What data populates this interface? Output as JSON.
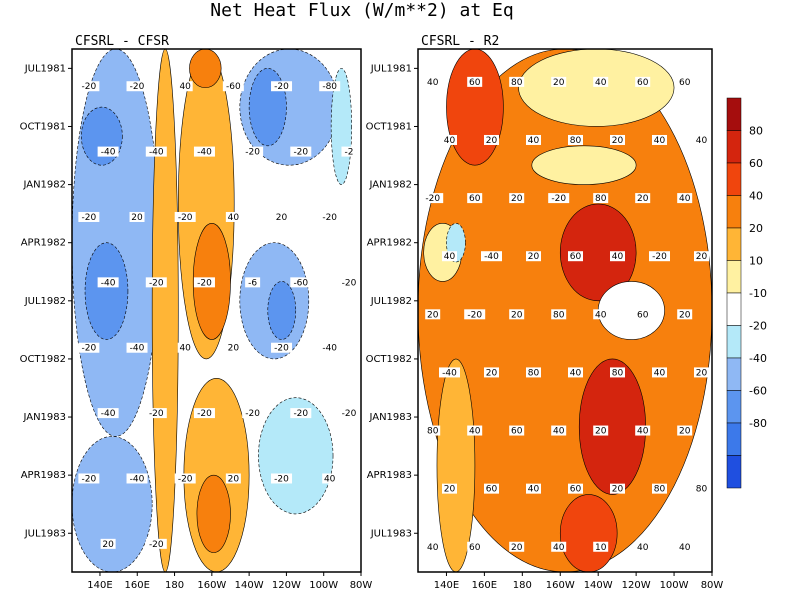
{
  "chart_data": {
    "type": "heatmap",
    "title": "Net Heat Flux (W/m**2) at Eq",
    "xlabel": "",
    "ylabel": "",
    "x_ticks": [
      "140E",
      "160E",
      "180",
      "160W",
      "140W",
      "120W",
      "100W",
      "80W"
    ],
    "y_ticks": [
      "JUL1981",
      "OCT1981",
      "JAN1982",
      "APR1982",
      "JUL1982",
      "OCT1982",
      "JAN1983",
      "APR1983",
      "JUL1983"
    ],
    "xlim": [
      "125E",
      "80W"
    ],
    "ylim": [
      "JUN1981",
      "SEP1983"
    ],
    "colorbar": {
      "levels": [
        -80,
        -60,
        -40,
        -20,
        -10,
        10,
        20,
        40,
        60,
        80
      ],
      "labels": [
        "-80",
        "-60",
        "-40",
        "-20",
        "-10",
        "10",
        "20",
        "40",
        "60",
        "80"
      ],
      "colors": [
        "#1f4fe0",
        "#3c79ea",
        "#5c95ef",
        "#8fb8f4",
        "#b4e9f9",
        "#ffffff",
        "#fff1a1",
        "#ffb536",
        "#f7800d",
        "#f0450d",
        "#d4250e",
        "#a50d0d"
      ]
    },
    "panels": [
      {
        "name": "CFSRL - CFSR",
        "regions": [
          {
            "x0": "125E",
            "x1": "172E",
            "y0": "JUN1981",
            "y1": "FEB1983",
            "value": -30
          },
          {
            "x0": "130E",
            "x1": "152E",
            "y0": "SEP1981",
            "y1": "DEC1981",
            "value": -50
          },
          {
            "x0": "132E",
            "x1": "155E",
            "y0": "APR1982",
            "y1": "SEP1982",
            "value": -45
          },
          {
            "x0": "125E",
            "x1": "168E",
            "y0": "FEB1983",
            "y1": "SEP1983",
            "value": -22
          },
          {
            "x0": "168E",
            "x1": "178W",
            "y0": "JUN1981",
            "y1": "SEP1983",
            "value": 28
          },
          {
            "x0": "178W",
            "x1": "148W",
            "y0": "JUN1981",
            "y1": "OCT1982",
            "value": 30
          },
          {
            "x0": "170W",
            "x1": "150W",
            "y0": "MAR1982",
            "y1": "SEP1982",
            "value": 55
          },
          {
            "x0": "172W",
            "x1": "155W",
            "y0": "JUN1981",
            "y1": "AUG1981",
            "value": 50
          },
          {
            "x0": "175W",
            "x1": "140W",
            "y0": "NOV1982",
            "y1": "SEP1983",
            "value": 30
          },
          {
            "x0": "168W",
            "x1": "150W",
            "y0": "APR1983",
            "y1": "AUG1983",
            "value": 50
          },
          {
            "x0": "145W",
            "x1": "92W",
            "y0": "JUN1981",
            "y1": "DEC1981",
            "value": -25
          },
          {
            "x0": "140W",
            "x1": "120W",
            "y0": "JUL1981",
            "y1": "NOV1981",
            "value": -45
          },
          {
            "x0": "145W",
            "x1": "108W",
            "y0": "APR1982",
            "y1": "OCT1982",
            "value": -28
          },
          {
            "x0": "130W",
            "x1": "115W",
            "y0": "JUN1982",
            "y1": "SEP1982",
            "value": -45
          },
          {
            "x0": "135W",
            "x1": "95W",
            "y0": "DEC1982",
            "y1": "JUN1983",
            "value": -18
          },
          {
            "x0": "96W",
            "x1": "85W",
            "y0": "JUL1981",
            "y1": "JAN1982",
            "value": -12
          }
        ],
        "contour_labels": [
          "-20",
          "-20",
          "40",
          "-60",
          "-20",
          "-80",
          "-40",
          "-40",
          "-40",
          "-20",
          "-20",
          "-2",
          "-20",
          "20",
          "-20",
          "40",
          "20",
          "-20",
          "-40",
          "-20",
          "-20",
          "-6",
          "-60",
          "-20",
          "-20",
          "-40",
          "40",
          "20",
          "-20",
          "-40",
          "-40",
          "-20",
          "-20",
          "-20",
          "-20",
          "-20",
          "-20",
          "-40",
          "-20",
          "20",
          "-20",
          "40",
          "20",
          "-20"
        ]
      },
      {
        "name": "CFSRL - R2",
        "regions": [
          {
            "x0": "125E",
            "x1": "80W",
            "y0": "JUN1981",
            "y1": "SEP1983",
            "value": 50
          },
          {
            "x0": "140E",
            "x1": "170E",
            "y0": "JUN1981",
            "y1": "DEC1981",
            "value": 75
          },
          {
            "x0": "160W",
            "x1": "120W",
            "y0": "FEB1982",
            "y1": "JUL1982",
            "value": 85
          },
          {
            "x0": "150W",
            "x1": "115W",
            "y0": "OCT1982",
            "y1": "MAY1983",
            "value": 85
          },
          {
            "x0": "160W",
            "x1": "130W",
            "y0": "MAY1983",
            "y1": "SEP1983",
            "value": 75
          },
          {
            "x0": "178E",
            "x1": "100W",
            "y0": "JUN1981",
            "y1": "OCT1981",
            "value": 15
          },
          {
            "x0": "175W",
            "x1": "120W",
            "y0": "NOV1981",
            "y1": "JAN1982",
            "value": 15
          },
          {
            "x0": "140W",
            "x1": "105W",
            "y0": "JUN1982",
            "y1": "SEP1982",
            "value": 0
          },
          {
            "x0": "128E",
            "x1": "148E",
            "y0": "MAR1982",
            "y1": "JUN1982",
            "value": 15
          },
          {
            "x0": "140E",
            "x1": "150E",
            "y0": "MAR1982",
            "y1": "MAY1982",
            "value": -20
          },
          {
            "x0": "135E",
            "x1": "155E",
            "y0": "OCT1982",
            "y1": "SEP1983",
            "value": 25
          }
        ],
        "contour_labels": [
          "40",
          "60",
          "80",
          "20",
          "40",
          "60",
          "60",
          "40",
          "20",
          "40",
          "80",
          "20",
          "40",
          "40",
          "-20",
          "60",
          "20",
          "-20",
          "80",
          "20",
          "40",
          "40",
          "-40",
          "20",
          "60",
          "40",
          "-20",
          "20",
          "20",
          "-20",
          "20",
          "80",
          "40",
          "60",
          "20",
          "-40",
          "20",
          "80",
          "40",
          "80",
          "40",
          "20",
          "80",
          "40",
          "60",
          "40",
          "20",
          "40",
          "20",
          "20",
          "60",
          "40",
          "60",
          "20",
          "80",
          "80",
          "40",
          "60",
          "20",
          "40",
          "10",
          "40",
          "40"
        ]
      }
    ]
  }
}
